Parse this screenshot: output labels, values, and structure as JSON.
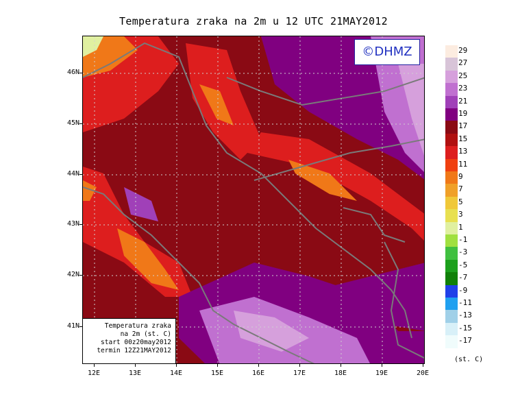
{
  "title": "Temperatura zraka na 2m u 12 UTC 21MAY2012",
  "copyright": "©DHMZ",
  "info_box": {
    "line1": "Temperatura zraka",
    "line2": "na 2m (st. C)",
    "line3": "start 00z20may2012",
    "line4": "termin 12Z21MAY2012"
  },
  "axes": {
    "lat_labels": [
      "46N",
      "45N",
      "44N",
      "43N",
      "42N",
      "41N"
    ],
    "lon_labels": [
      "12E",
      "13E",
      "14E",
      "15E",
      "16E",
      "17E",
      "18E",
      "19E",
      "20E"
    ]
  },
  "legend": {
    "unit": "(st. C)",
    "labels": [
      "29",
      "27",
      "25",
      "23",
      "21",
      "19",
      "17",
      "15",
      "13",
      "11",
      "9",
      "7",
      "5",
      "3",
      "1",
      "-1",
      "-3",
      "-5",
      "-7",
      "-9",
      "-11",
      "-13",
      "-15",
      "-17"
    ],
    "colors": [
      "#fcece0",
      "#d8c4d8",
      "#d6a0dc",
      "#c070d0",
      "#a040b8",
      "#800080",
      "#8a0a14",
      "#b01010",
      "#dd1e1e",
      "#f04010",
      "#f07818",
      "#f0a028",
      "#f0c838",
      "#e8e050",
      "#e0f0a0",
      "#a0e040",
      "#40c040",
      "#1ca01c",
      "#108008",
      "#2040e8",
      "#20a0f0",
      "#a0d0e8",
      "#d8f0f8",
      "#f0fcfc"
    ]
  },
  "colors": {
    "land_mask": "#7a7a7a",
    "grid": "#d0d0d0",
    "copyright_text": "#2030c0"
  }
}
